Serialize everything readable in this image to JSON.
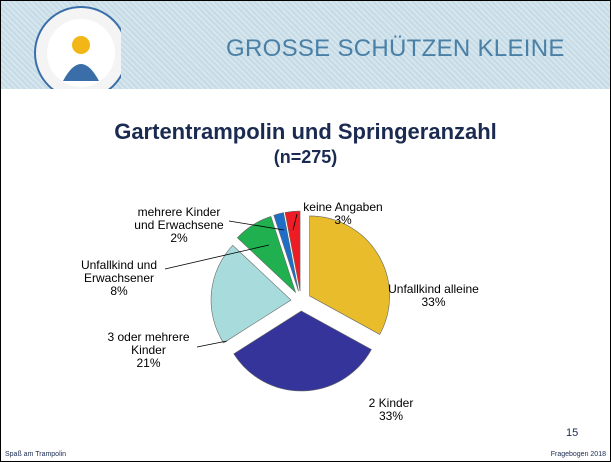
{
  "header": {
    "title": "GROSSE SCHÜTZEN KLEINE"
  },
  "chart_data": {
    "type": "pie",
    "title": "Gartentrampolin und Springeranzahl",
    "subtitle": "(n=275)",
    "categories": [
      "Unfallkind alleine",
      "2 Kinder",
      "3 oder mehrere Kinder",
      "Unfallkind und Erwachsener",
      "mehrere Kinder und Erwachsene",
      "keine Angaben"
    ],
    "values": [
      33,
      33,
      21,
      8,
      2,
      3
    ],
    "value_labels": [
      "33%",
      "33%",
      "21%",
      "8%",
      "2%",
      "3%"
    ],
    "colors": [
      "#e8bc2a",
      "#34349a",
      "#a8dcdc",
      "#20b050",
      "#1e6ec8",
      "#ee1c24"
    ]
  },
  "footer": {
    "left": "Spaß am Trampolin",
    "page": "15",
    "right": "Fragebogen 2018"
  }
}
